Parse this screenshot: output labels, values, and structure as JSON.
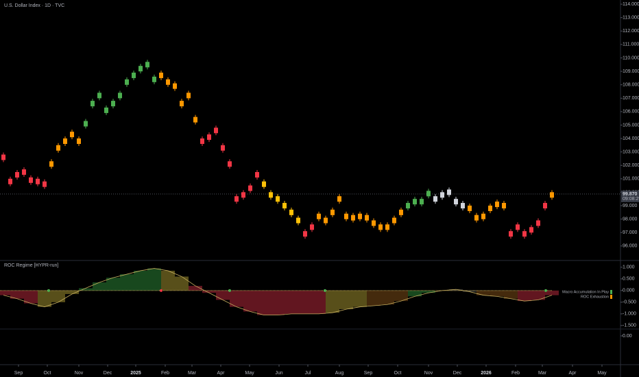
{
  "chart_data": [
    {
      "type": "candle",
      "title": "U.S. Dollar Index · 1D · TVC",
      "values": [
        102.6,
        100.8,
        101.3,
        101.5,
        100.9,
        100.8,
        100.6,
        102.1,
        103.3,
        103.8,
        104.3,
        103.8,
        105.1,
        106.6,
        107.2,
        106.1,
        106.6,
        107.2,
        108.2,
        108.7,
        109.2,
        109.5,
        108.4,
        108.7,
        108.2,
        107.9,
        106.6,
        107.2,
        105.4,
        103.8,
        104.1,
        104.6,
        103.3,
        102.1,
        99.5,
        99.8,
        100.3,
        101.3,
        100.6,
        99.8,
        99.5,
        99.0,
        98.5,
        97.9,
        96.9,
        97.4,
        98.2,
        97.9,
        98.5,
        99.5,
        98.2,
        98.1,
        98.2,
        98.1,
        97.7,
        97.4,
        97.4,
        97.9,
        98.5,
        99.0,
        99.3,
        99.3,
        99.9,
        99.5,
        99.8,
        100.0,
        99.3,
        99.0,
        98.8,
        98.1,
        98.2,
        98.8,
        99.1,
        99.0,
        96.9,
        97.4,
        96.9,
        97.2,
        97.7,
        99.0,
        99.8
      ],
      "colors": [
        "#f23645",
        "#f23645",
        "#f23645",
        "#f23645",
        "#f23645",
        "#f23645",
        "#f23645",
        "#ff9800",
        "#ff9800",
        "#ff9800",
        "#ff9800",
        "#ff9800",
        "#4caf50",
        "#4caf50",
        "#4caf50",
        "#4caf50",
        "#4caf50",
        "#4caf50",
        "#4caf50",
        "#4caf50",
        "#4caf50",
        "#4caf50",
        "#4caf50",
        "#ff9800",
        "#ff9800",
        "#ff9800",
        "#ff9800",
        "#ff9800",
        "#ff9800",
        "#f23645",
        "#f23645",
        "#f23645",
        "#f23645",
        "#f23645",
        "#f23645",
        "#f23645",
        "#f23645",
        "#f23645",
        "#ffc107",
        "#ffc107",
        "#ffc107",
        "#ffc107",
        "#ffc107",
        "#ffc107",
        "#f23645",
        "#f23645",
        "#ff9800",
        "#ff9800",
        "#ff9800",
        "#ff9800",
        "#ff9800",
        "#ff9800",
        "#ff9800",
        "#ff9800",
        "#ff9800",
        "#ff9800",
        "#ff9800",
        "#ff9800",
        "#ff9800",
        "#4caf50",
        "#4caf50",
        "#4caf50",
        "#4caf50",
        "#d1d4dc",
        "#d1d4dc",
        "#d1d4dc",
        "#d1d4dc",
        "#d1d4dc",
        "#ff9800",
        "#ff9800",
        "#ff9800",
        "#ff9800",
        "#ff9800",
        "#ff9800",
        "#f23645",
        "#f23645",
        "#f23645",
        "#f23645",
        "#f23645",
        "#f23645",
        "#ff9800"
      ],
      "xlim": [
        -0.5,
        90
      ],
      "ylim": [
        94.92,
        114.31
      ],
      "yticks": [
        {
          "value": 96,
          "label": "96.000"
        },
        {
          "value": 97,
          "label": "97.000"
        },
        {
          "value": 98,
          "label": "98.000"
        },
        {
          "value": 99,
          "label": "99.000"
        },
        {
          "value": 100,
          "label": "100.000"
        },
        {
          "value": 101,
          "label": "101.000"
        },
        {
          "value": 102,
          "label": "102.000"
        },
        {
          "value": 103,
          "label": "103.000"
        },
        {
          "value": 104,
          "label": "104.000"
        },
        {
          "value": 105,
          "label": "105.000"
        },
        {
          "value": 106,
          "label": "106.000"
        },
        {
          "value": 107,
          "label": "107.000"
        },
        {
          "value": 108,
          "label": "108.000"
        },
        {
          "value": 109,
          "label": "109.000"
        },
        {
          "value": 110,
          "label": "110.000"
        },
        {
          "value": 111,
          "label": "111.000"
        },
        {
          "value": 112,
          "label": "112.000"
        },
        {
          "value": 113,
          "label": "113.000"
        },
        {
          "value": 114,
          "label": "114.000"
        }
      ],
      "xticks": [
        {
          "value": 2.2,
          "label": "Sep"
        },
        {
          "value": 6.4,
          "label": "Oct"
        },
        {
          "value": 11,
          "label": "Nov"
        },
        {
          "value": 15.2,
          "label": "Dec"
        },
        {
          "value": 19.3,
          "label": "2025"
        },
        {
          "value": 23.6,
          "label": "Feb"
        },
        {
          "value": 27.5,
          "label": "Mar"
        },
        {
          "value": 31.7,
          "label": "Apr"
        },
        {
          "value": 35.9,
          "label": "May"
        },
        {
          "value": 40.2,
          "label": "Jun"
        },
        {
          "value": 44.4,
          "label": "Jul"
        },
        {
          "value": 49,
          "label": "Aug"
        },
        {
          "value": 53.2,
          "label": "Sep"
        },
        {
          "value": 57.5,
          "label": "Oct"
        },
        {
          "value": 62,
          "label": "Nov"
        },
        {
          "value": 66.2,
          "label": "Dec"
        },
        {
          "value": 70.4,
          "label": "2026"
        },
        {
          "value": 74.7,
          "label": "Feb"
        },
        {
          "value": 78.6,
          "label": "Mar"
        },
        {
          "value": 83,
          "label": "Apr"
        },
        {
          "value": 87.3,
          "label": "May"
        }
      ],
      "last_price": {
        "value": 99.87,
        "label": "99.870"
      },
      "countdown": "09:08:29"
    },
    {
      "type": "oscillator",
      "title": "ROC Regime [HYPR-run]",
      "values": [
        -0.2,
        -0.35,
        -0.55,
        -0.7,
        -0.5,
        -0.15,
        0.1,
        0.35,
        0.55,
        0.7,
        0.85,
        0.95,
        0.85,
        0.6,
        0.2,
        -0.1,
        -0.4,
        -0.7,
        -0.9,
        -1.05,
        -1.05,
        -1.0,
        -1.0,
        -1.0,
        -0.95,
        -0.8,
        -0.7,
        -0.65,
        -0.6,
        -0.45,
        -0.25,
        -0.1,
        0,
        0.05,
        -0.05,
        -0.2,
        -0.25,
        -0.35,
        -0.45,
        -0.4,
        -0.2
      ],
      "colors": [
        "#7a1c28",
        "#7a1c28",
        "#7a1c28",
        "#6e6320",
        "#6e6320",
        "#6e6320",
        "#1e5a26",
        "#1e5a26",
        "#1e5a26",
        "#1e5a26",
        "#1e5a26",
        "#1e5a26",
        "#6e6320",
        "#6e6320",
        "#7a1c28",
        "#7a1c28",
        "#7a1c28",
        "#7a1c28",
        "#7a1c28",
        "#7a1c28",
        "#7a1c28",
        "#7a1c28",
        "#7a1c28",
        "#7a1c28",
        "#6e6320",
        "#6e6320",
        "#6e6320",
        "#553510",
        "#553510",
        "#553510",
        "#1e5a26",
        "#1e5a26",
        "#444444",
        "#444444",
        "#444444",
        "#553510",
        "#553510",
        "#553510",
        "#7a1c28",
        "#7a1c28",
        "#7a1c28"
      ],
      "line_color": "#c8b060",
      "xlim": [
        -0.25,
        45
      ],
      "ylim": [
        -1.65,
        1.26
      ],
      "yticks": [
        {
          "value": 1,
          "label": "1.000"
        },
        {
          "value": 0.5,
          "label": "0.500"
        },
        {
          "value": 0,
          "label": "0.000"
        },
        {
          "value": -0.5,
          "label": "-0.500"
        },
        {
          "value": -1,
          "label": "-1.000"
        },
        {
          "value": -1.5,
          "label": "-1.500"
        }
      ],
      "signals": {
        "x": [
          3.3,
          16.5,
          23.45,
          39.55,
          11.5
        ],
        "colors": [
          "#4caf50",
          "#4caf50",
          "#4caf50",
          "#4caf50",
          "#f23645"
        ]
      },
      "legend": [
        {
          "name": "Macro Accumulation In Play",
          "color": "#4caf50"
        },
        {
          "name": "ROC Exhaustion",
          "color": "#ff9800"
        }
      ]
    },
    {
      "type": "pane",
      "ylim": [
        -2,
        0.5
      ],
      "yticks": [
        {
          "value": 0,
          "label": "0.00"
        }
      ]
    }
  ]
}
